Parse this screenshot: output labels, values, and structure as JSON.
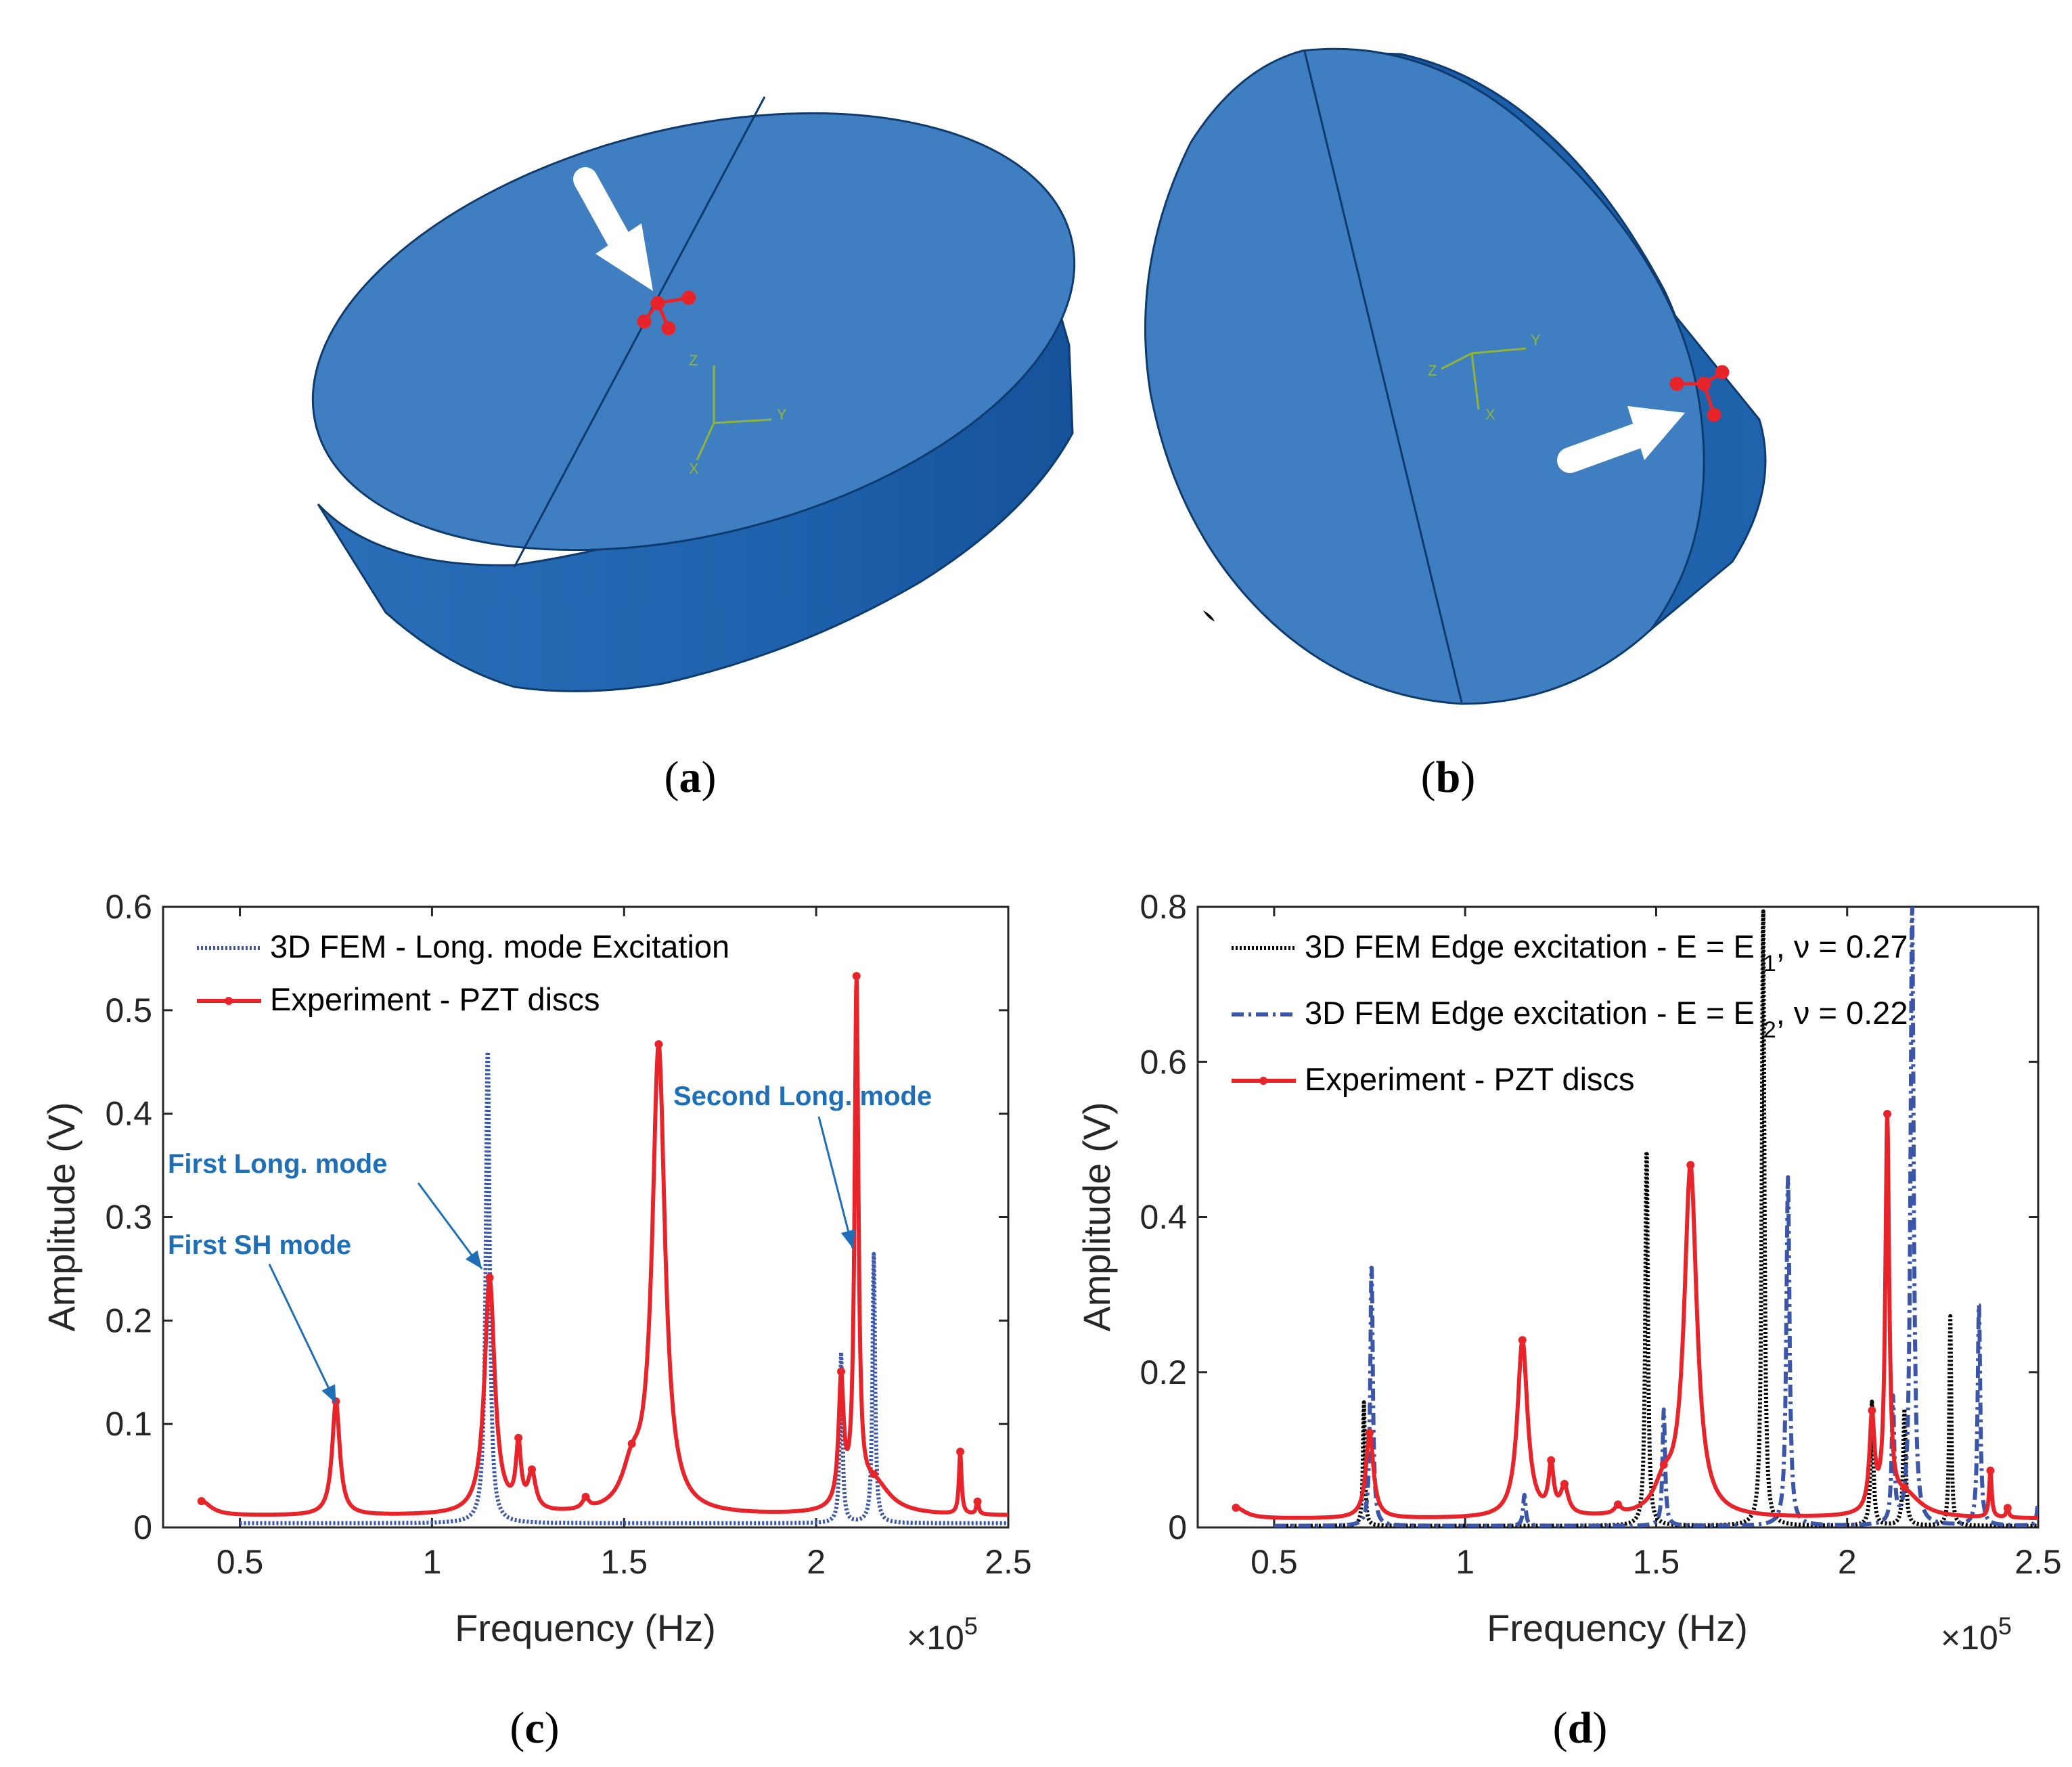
{
  "captions": {
    "a": "a",
    "b": "b",
    "c": "c",
    "d": "d"
  },
  "triad_labels": {
    "z": "Z",
    "y": "Y",
    "x": "X"
  },
  "colors": {
    "disc_top": "#3f7fc1",
    "disc_side": "#1c5ea8",
    "red": "#e8242b",
    "blue": "#3b55a8",
    "black": "#000000",
    "annotation": "#1f6fb8"
  },
  "chart_data": [
    {
      "type": "line",
      "id": "c",
      "xlabel": "Frequency (Hz)",
      "ylabel": "Amplitude (V)",
      "xlim": [
        0.3,
        2.5
      ],
      "ylim": [
        0,
        0.6
      ],
      "x_multiplier": "×10",
      "x_exponent": "5",
      "xticks": [
        "0.5",
        "1",
        "1.5",
        "2",
        "2.5"
      ],
      "yticks": [
        "0",
        "0.1",
        "0.2",
        "0.3",
        "0.4",
        "0.5",
        "0.6"
      ],
      "legend": [
        "3D FEM - Long. mode Excitation",
        "Experiment - PZT discs"
      ],
      "series": [
        {
          "name": "3D FEM - Long. mode Excitation",
          "color": "#3b55a8",
          "style": "dotted",
          "baseline": 0.004,
          "x_start": 0.5,
          "x_end": 2.5,
          "peaks": [
            [
              1.145,
              0.46,
              0.006
            ],
            [
              2.065,
              0.165,
              0.004
            ],
            [
              2.15,
              0.26,
              0.004
            ]
          ]
        },
        {
          "name": "Experiment - PZT discs",
          "color": "#e8242b",
          "style": "solid",
          "baseline": 0.011,
          "x_start": 0.4,
          "x_end": 2.5,
          "peaks": [
            [
              0.4,
              0.014,
              0.03
            ],
            [
              0.75,
              0.11,
              0.012
            ],
            [
              1.15,
              0.228,
              0.016
            ],
            [
              1.225,
              0.06,
              0.008
            ],
            [
              1.26,
              0.035,
              0.012
            ],
            [
              1.4,
              0.01,
              0.01
            ],
            [
              1.52,
              0.035,
              0.03
            ],
            [
              1.59,
              0.45,
              0.02
            ],
            [
              2.065,
              0.12,
              0.008
            ],
            [
              2.105,
              0.5,
              0.006
            ],
            [
              2.15,
              0.03,
              0.05
            ],
            [
              2.375,
              0.06,
              0.004
            ],
            [
              2.42,
              0.012,
              0.004
            ]
          ]
        }
      ],
      "annotations": [
        {
          "text": "First SH mode",
          "x": 0.75,
          "y": 0.12
        },
        {
          "text": "First Long. mode",
          "x": 1.13,
          "y": 0.25
        },
        {
          "text": "Second Long. mode",
          "x": 2.095,
          "y": 0.27
        }
      ]
    },
    {
      "type": "line",
      "id": "d",
      "xlabel": "Frequency (Hz)",
      "ylabel": "Amplitude (V)",
      "xlim": [
        0.3,
        2.5
      ],
      "ylim": [
        0,
        0.8
      ],
      "x_multiplier": "×10",
      "x_exponent": "5",
      "xticks": [
        "0.5",
        "1",
        "1.5",
        "2",
        "2.5"
      ],
      "yticks": [
        "0",
        "0.2",
        "0.4",
        "0.6",
        "0.8"
      ],
      "legend": [
        {
          "pre": "3D FEM Edge excitation - E = E ",
          "sub": "1",
          "post": ", ν = 0.27"
        },
        {
          "pre": "3D FEM Edge excitation - E = E ",
          "sub": "2",
          "post": ", ν = 0.22"
        },
        {
          "pre": "Experiment - PZT discs",
          "sub": "",
          "post": ""
        }
      ],
      "series": [
        {
          "name": "3D FEM Edge excitation - E = E1, ν = 0.27",
          "color": "#000000",
          "style": "dotted",
          "baseline": 0.002,
          "x_start": 0.5,
          "x_end": 2.5,
          "peaks": [
            [
              0.735,
              0.16,
              0.003
            ],
            [
              1.475,
              0.49,
              0.004
            ],
            [
              1.78,
              0.8,
              0.004
            ],
            [
              2.065,
              0.16,
              0.004
            ],
            [
              2.15,
              0.15,
              0.004
            ],
            [
              2.27,
              0.27,
              0.003
            ]
          ]
        },
        {
          "name": "3D FEM Edge excitation - E = E2, ν = 0.22",
          "color": "#3b55a8",
          "style": "dashdot",
          "baseline": 0.002,
          "x_start": 0.5,
          "x_end": 2.5,
          "peaks": [
            [
              0.755,
              0.34,
              0.004
            ],
            [
              1.155,
              0.04,
              0.004
            ],
            [
              1.52,
              0.15,
              0.004
            ],
            [
              1.845,
              0.45,
              0.005
            ],
            [
              2.12,
              0.16,
              0.004
            ],
            [
              2.17,
              0.8,
              0.005
            ],
            [
              2.345,
              0.29,
              0.004
            ],
            [
              2.5,
              0.03,
              0.004
            ]
          ]
        },
        {
          "name": "Experiment - PZT discs",
          "color": "#e8242b",
          "style": "solid",
          "baseline": 0.011,
          "x_start": 0.4,
          "x_end": 2.5,
          "peaks": [
            [
              0.4,
              0.014,
              0.03
            ],
            [
              0.75,
              0.11,
              0.012
            ],
            [
              1.15,
              0.228,
              0.016
            ],
            [
              1.225,
              0.06,
              0.008
            ],
            [
              1.26,
              0.035,
              0.012
            ],
            [
              1.4,
              0.01,
              0.01
            ],
            [
              1.52,
              0.035,
              0.03
            ],
            [
              1.59,
              0.45,
              0.02
            ],
            [
              2.065,
              0.12,
              0.008
            ],
            [
              2.105,
              0.5,
              0.006
            ],
            [
              2.15,
              0.03,
              0.05
            ],
            [
              2.375,
              0.06,
              0.004
            ],
            [
              2.42,
              0.012,
              0.004
            ]
          ]
        }
      ]
    }
  ]
}
